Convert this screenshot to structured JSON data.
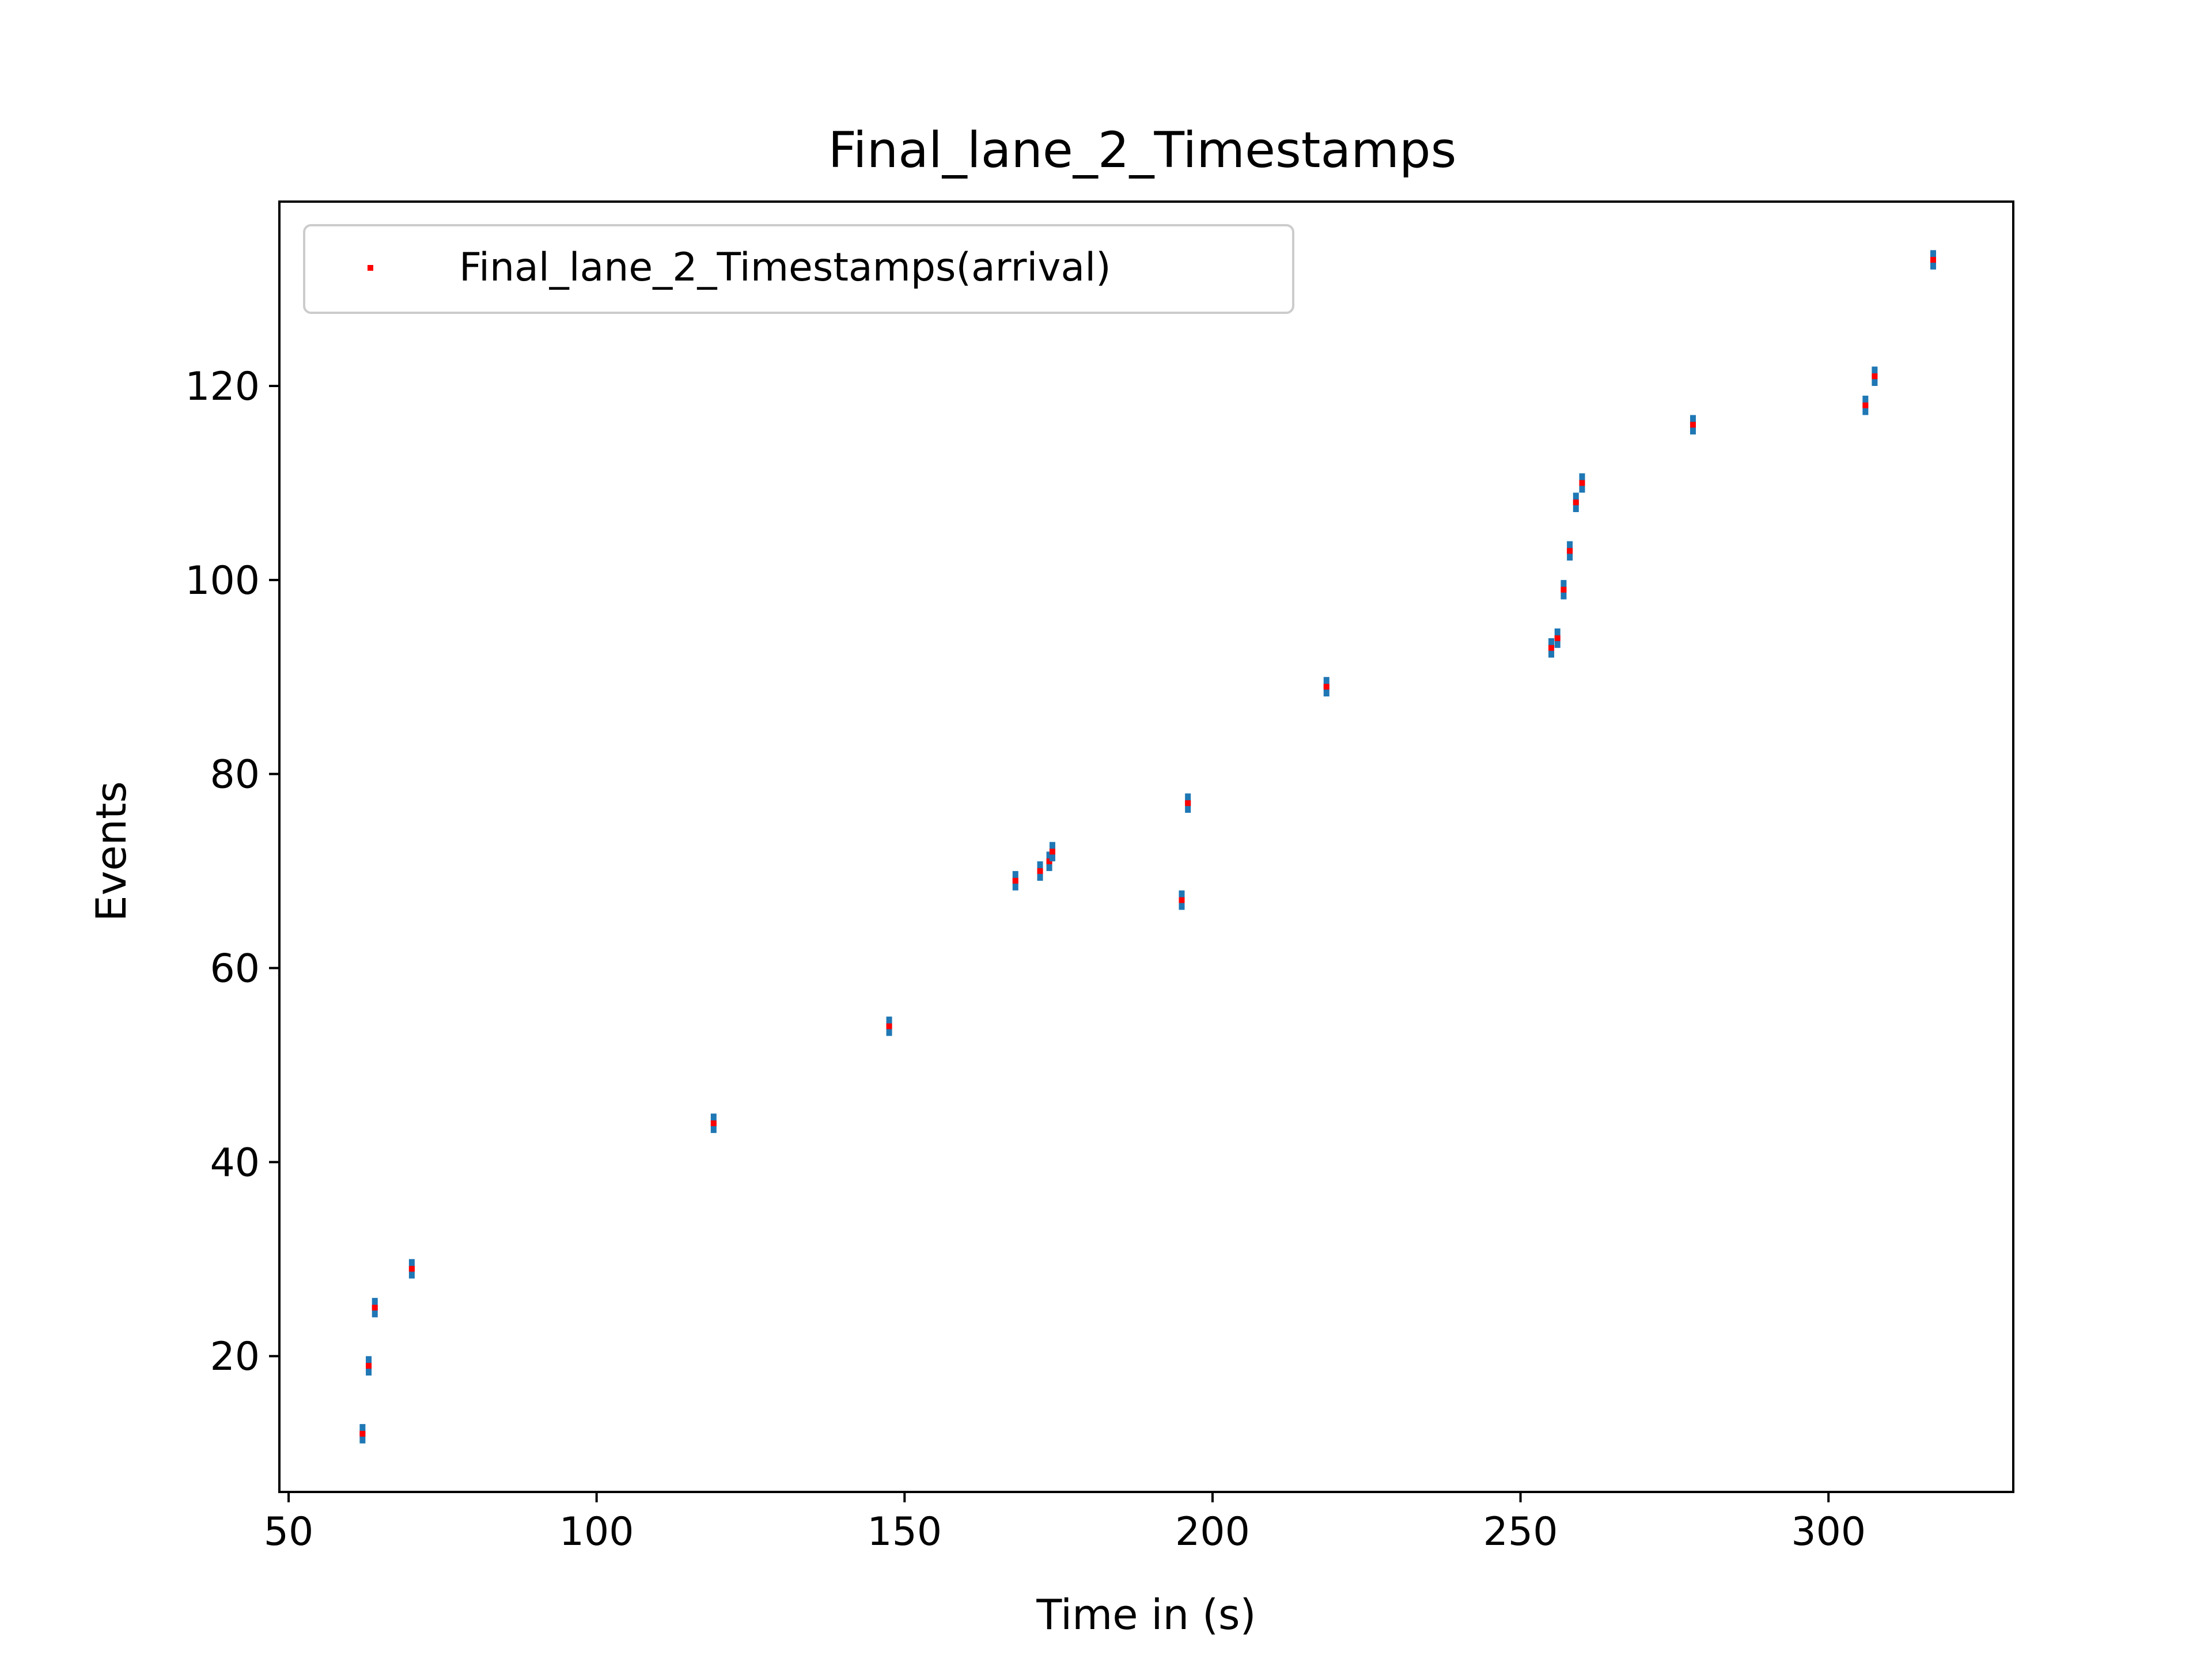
{
  "chart_data": {
    "type": "scatter",
    "title": "Final_lane_2_Timestamps",
    "xlabel": "Time in (s)",
    "ylabel": "Events",
    "xlim": [
      48.5,
      330
    ],
    "ylim": [
      6,
      139
    ],
    "xticks": [
      50,
      100,
      150,
      200,
      250,
      300
    ],
    "yticks": [
      20,
      40,
      60,
      80,
      100,
      120
    ],
    "grid": false,
    "legend": {
      "position": "top-left",
      "entries": [
        "Final_lane_2_Timestamps(arrival)"
      ]
    },
    "colors": {
      "marker": "#ff0000",
      "errorbar": "#1f77b4"
    },
    "error_bar": 1,
    "series": [
      {
        "name": "Final_lane_2_Timestamps(arrival)",
        "points": [
          [
            62,
            12
          ],
          [
            63,
            19
          ],
          [
            64,
            25
          ],
          [
            70,
            29
          ],
          [
            119,
            44
          ],
          [
            147.5,
            54
          ],
          [
            168,
            69
          ],
          [
            172,
            70
          ],
          [
            173.5,
            71
          ],
          [
            174,
            72
          ],
          [
            195,
            67
          ],
          [
            196,
            77
          ],
          [
            218.5,
            89
          ],
          [
            255,
            93
          ],
          [
            256,
            94
          ],
          [
            257,
            99
          ],
          [
            258,
            103
          ],
          [
            259,
            108
          ],
          [
            260,
            110
          ],
          [
            278,
            116
          ],
          [
            306,
            118
          ],
          [
            307.5,
            121
          ],
          [
            317,
            133
          ]
        ]
      }
    ]
  }
}
